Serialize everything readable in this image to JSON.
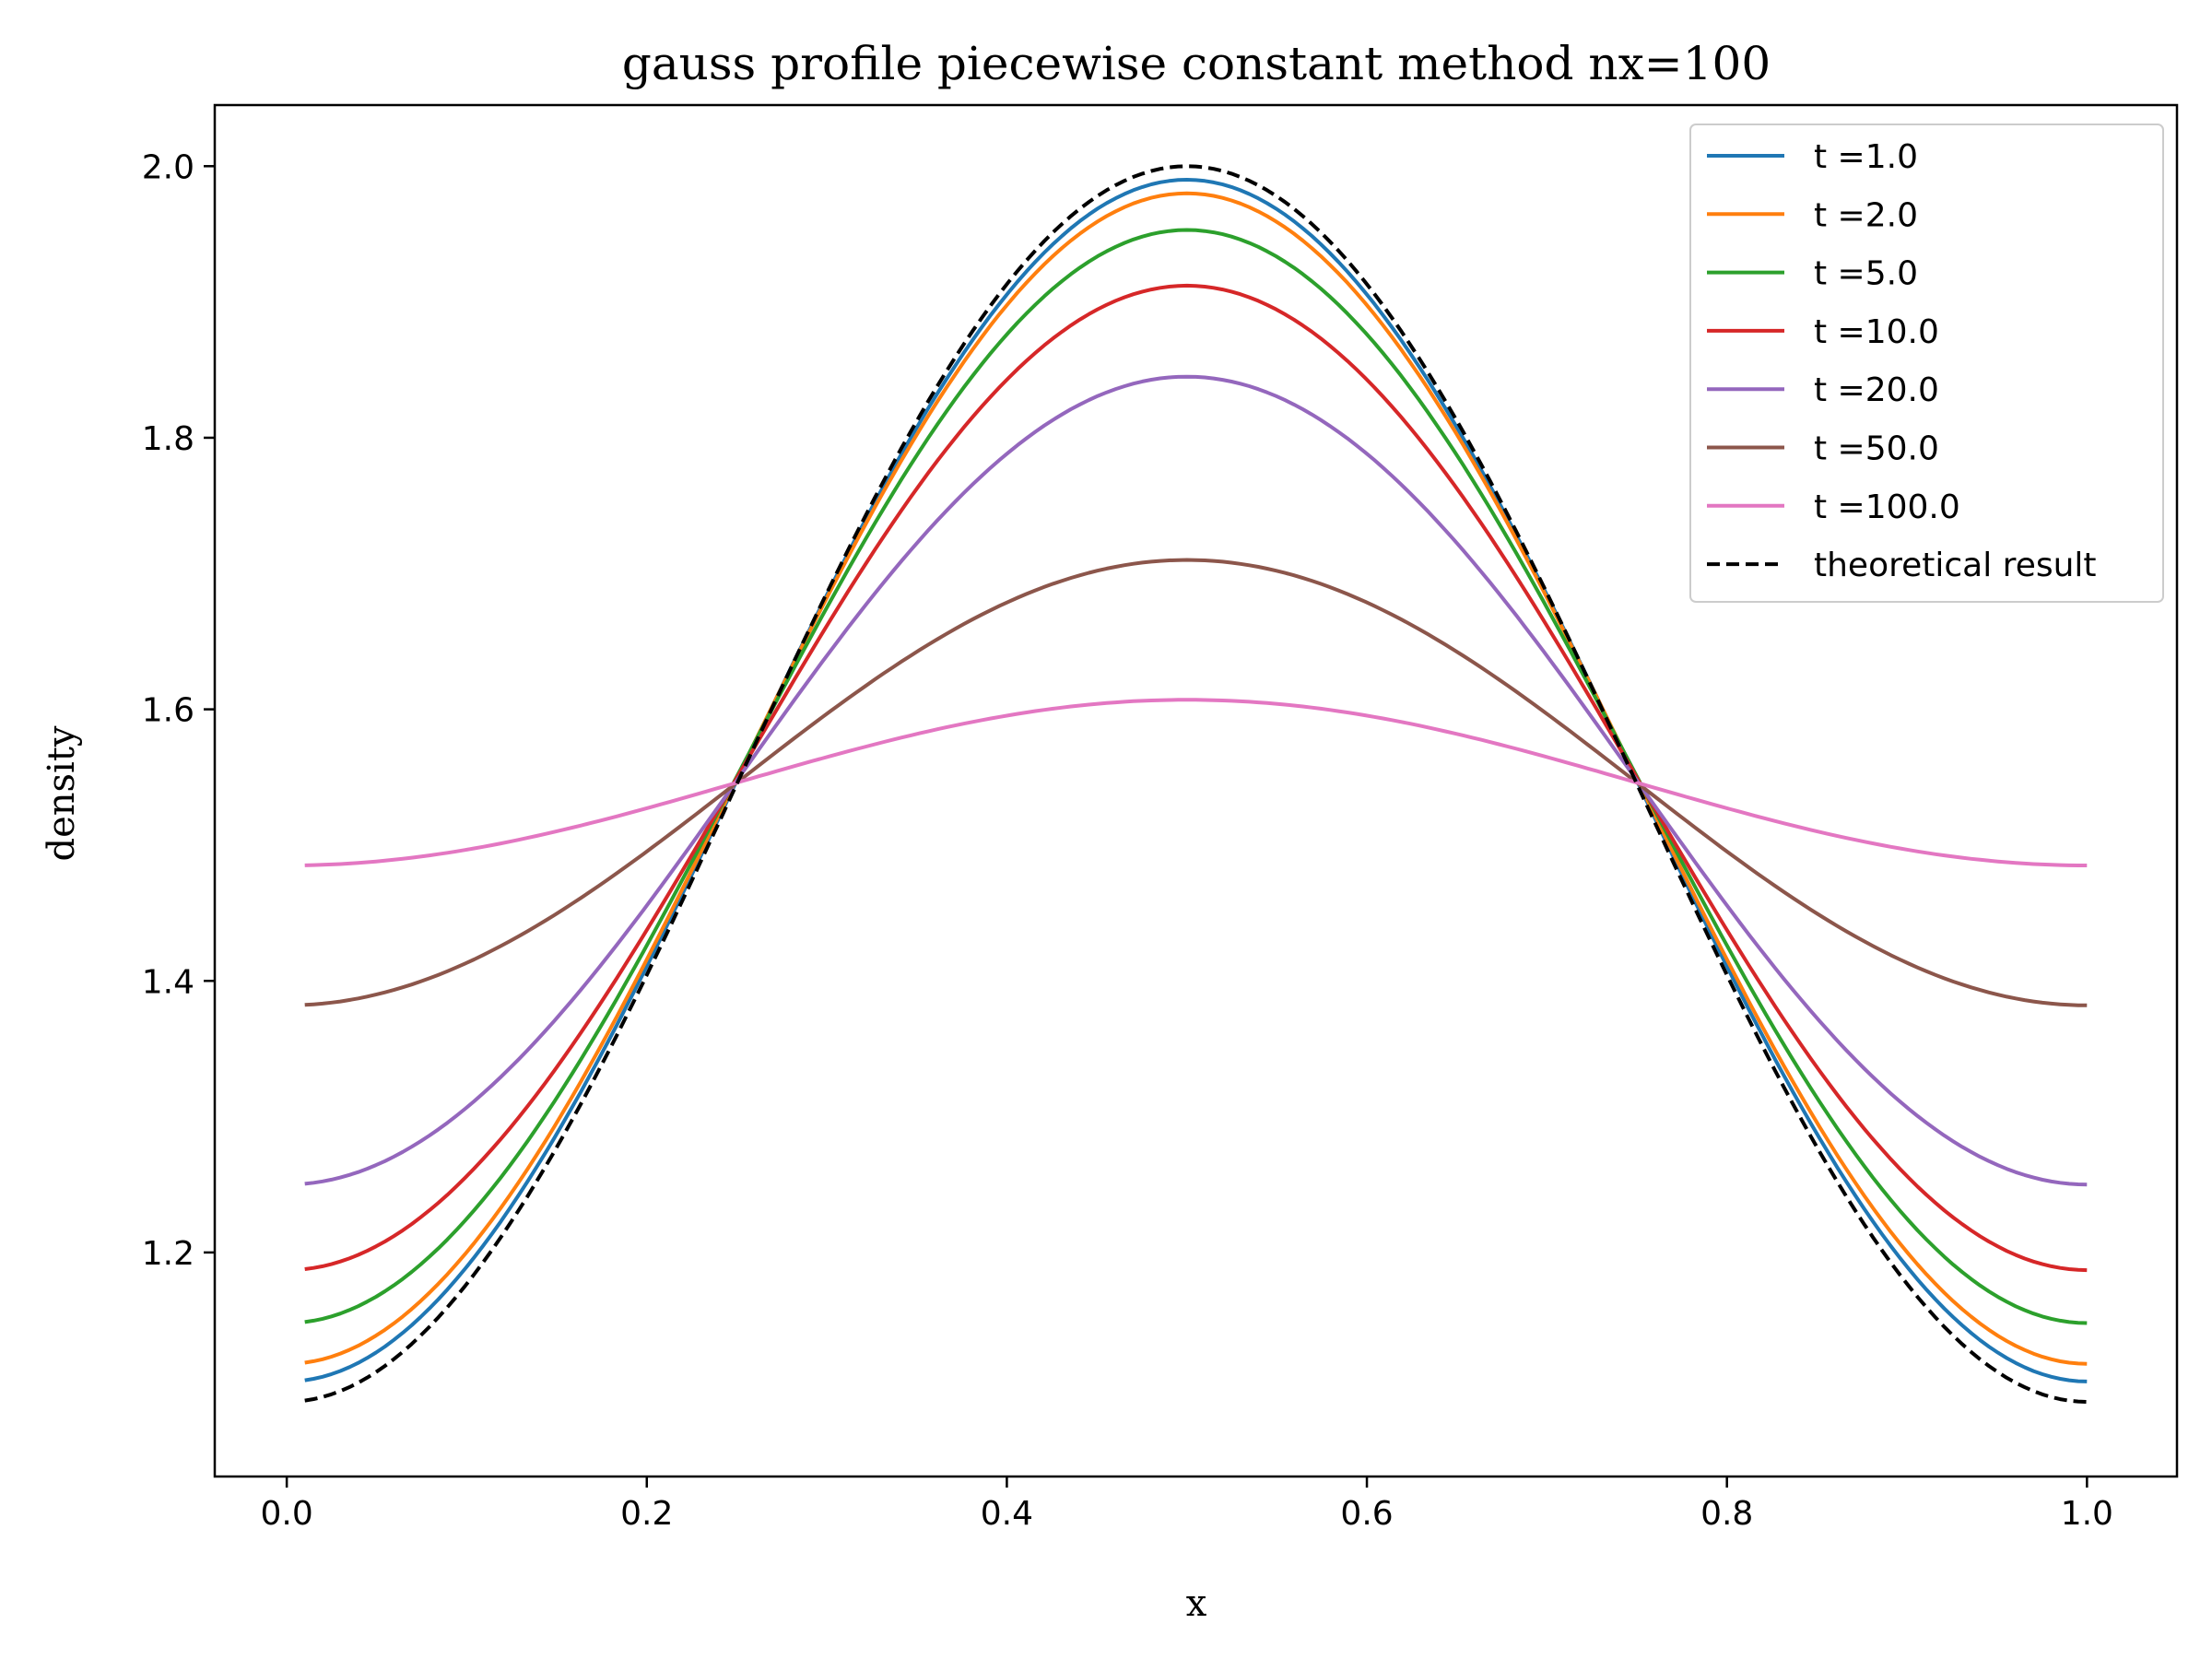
{
  "chart_data": {
    "type": "line",
    "title": "gauss profile piecewise constant method nx=100",
    "xlabel": "x",
    "ylabel": "density",
    "xlim": [
      -0.04,
      1.05
    ],
    "ylim": [
      1.035,
      2.045
    ],
    "xticks": [
      "0.0",
      "0.2",
      "0.4",
      "0.6",
      "0.8",
      "1.0"
    ],
    "yticks": [
      "1.2",
      "1.4",
      "1.6",
      "1.8",
      "2.0"
    ],
    "grid": false,
    "legend_position": "top-right",
    "x_range": [
      0.01,
      1.0
    ],
    "series": [
      {
        "name": "t =1.0",
        "color": "#1f77b4",
        "style": "solid",
        "min": 1.105,
        "max": 1.99
      },
      {
        "name": "t =2.0",
        "color": "#ff7f0e",
        "style": "solid",
        "min": 1.118,
        "max": 1.98
      },
      {
        "name": "t =5.0",
        "color": "#2ca02c",
        "style": "solid",
        "min": 1.148,
        "max": 1.953
      },
      {
        "name": "t =10.0",
        "color": "#d62728",
        "style": "solid",
        "min": 1.187,
        "max": 1.912
      },
      {
        "name": "t =20.0",
        "color": "#9467bd",
        "style": "solid",
        "min": 1.25,
        "max": 1.845
      },
      {
        "name": "t =50.0",
        "color": "#8c564b",
        "style": "solid",
        "min": 1.382,
        "max": 1.71
      },
      {
        "name": "t =100.0",
        "color": "#e377c2",
        "style": "solid",
        "min": 1.485,
        "max": 1.607
      },
      {
        "name": "theoretical result",
        "color": "#000000",
        "style": "dashed",
        "min": 1.09,
        "max": 2.0
      }
    ]
  }
}
